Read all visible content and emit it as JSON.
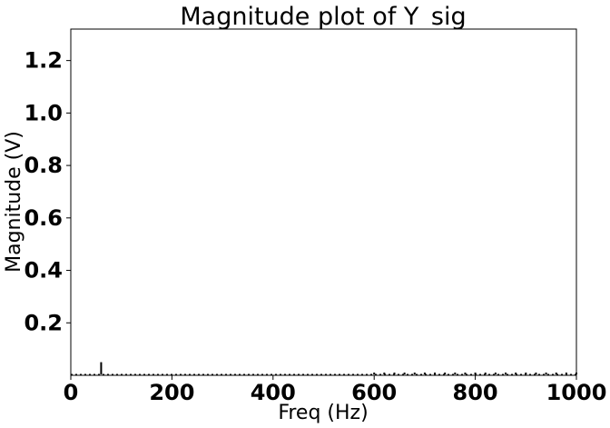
{
  "chart_data": {
    "type": "line",
    "title": "Magnitude plot of Y_sig",
    "xlabel": "Freq (Hz)",
    "ylabel": "Magnitude (V)",
    "xlim": [
      0,
      1000
    ],
    "ylim": [
      0,
      1.32
    ],
    "xticks": [
      "0",
      "200",
      "400",
      "600",
      "800",
      "1000"
    ],
    "yticks": [
      "0.2",
      "0.4",
      "0.6",
      "0.8",
      "1.0",
      "1.2"
    ],
    "grid": false,
    "style": "stem",
    "color": "#000000",
    "series": [
      {
        "x": [
          60,
          600,
          620,
          640,
          660,
          680,
          700,
          720,
          740,
          760,
          780,
          800,
          820,
          840,
          860,
          880,
          900,
          920,
          940,
          960,
          980,
          1000
        ],
        "values": [
          0.05,
          0.003,
          0.003,
          0.003,
          0.003,
          0.003,
          0.003,
          0.003,
          0.003,
          0.003,
          0.003,
          0.003,
          0.003,
          0.003,
          0.003,
          0.003,
          0.003,
          0.003,
          0.003,
          0.006,
          0.004,
          0.004
        ]
      }
    ]
  }
}
